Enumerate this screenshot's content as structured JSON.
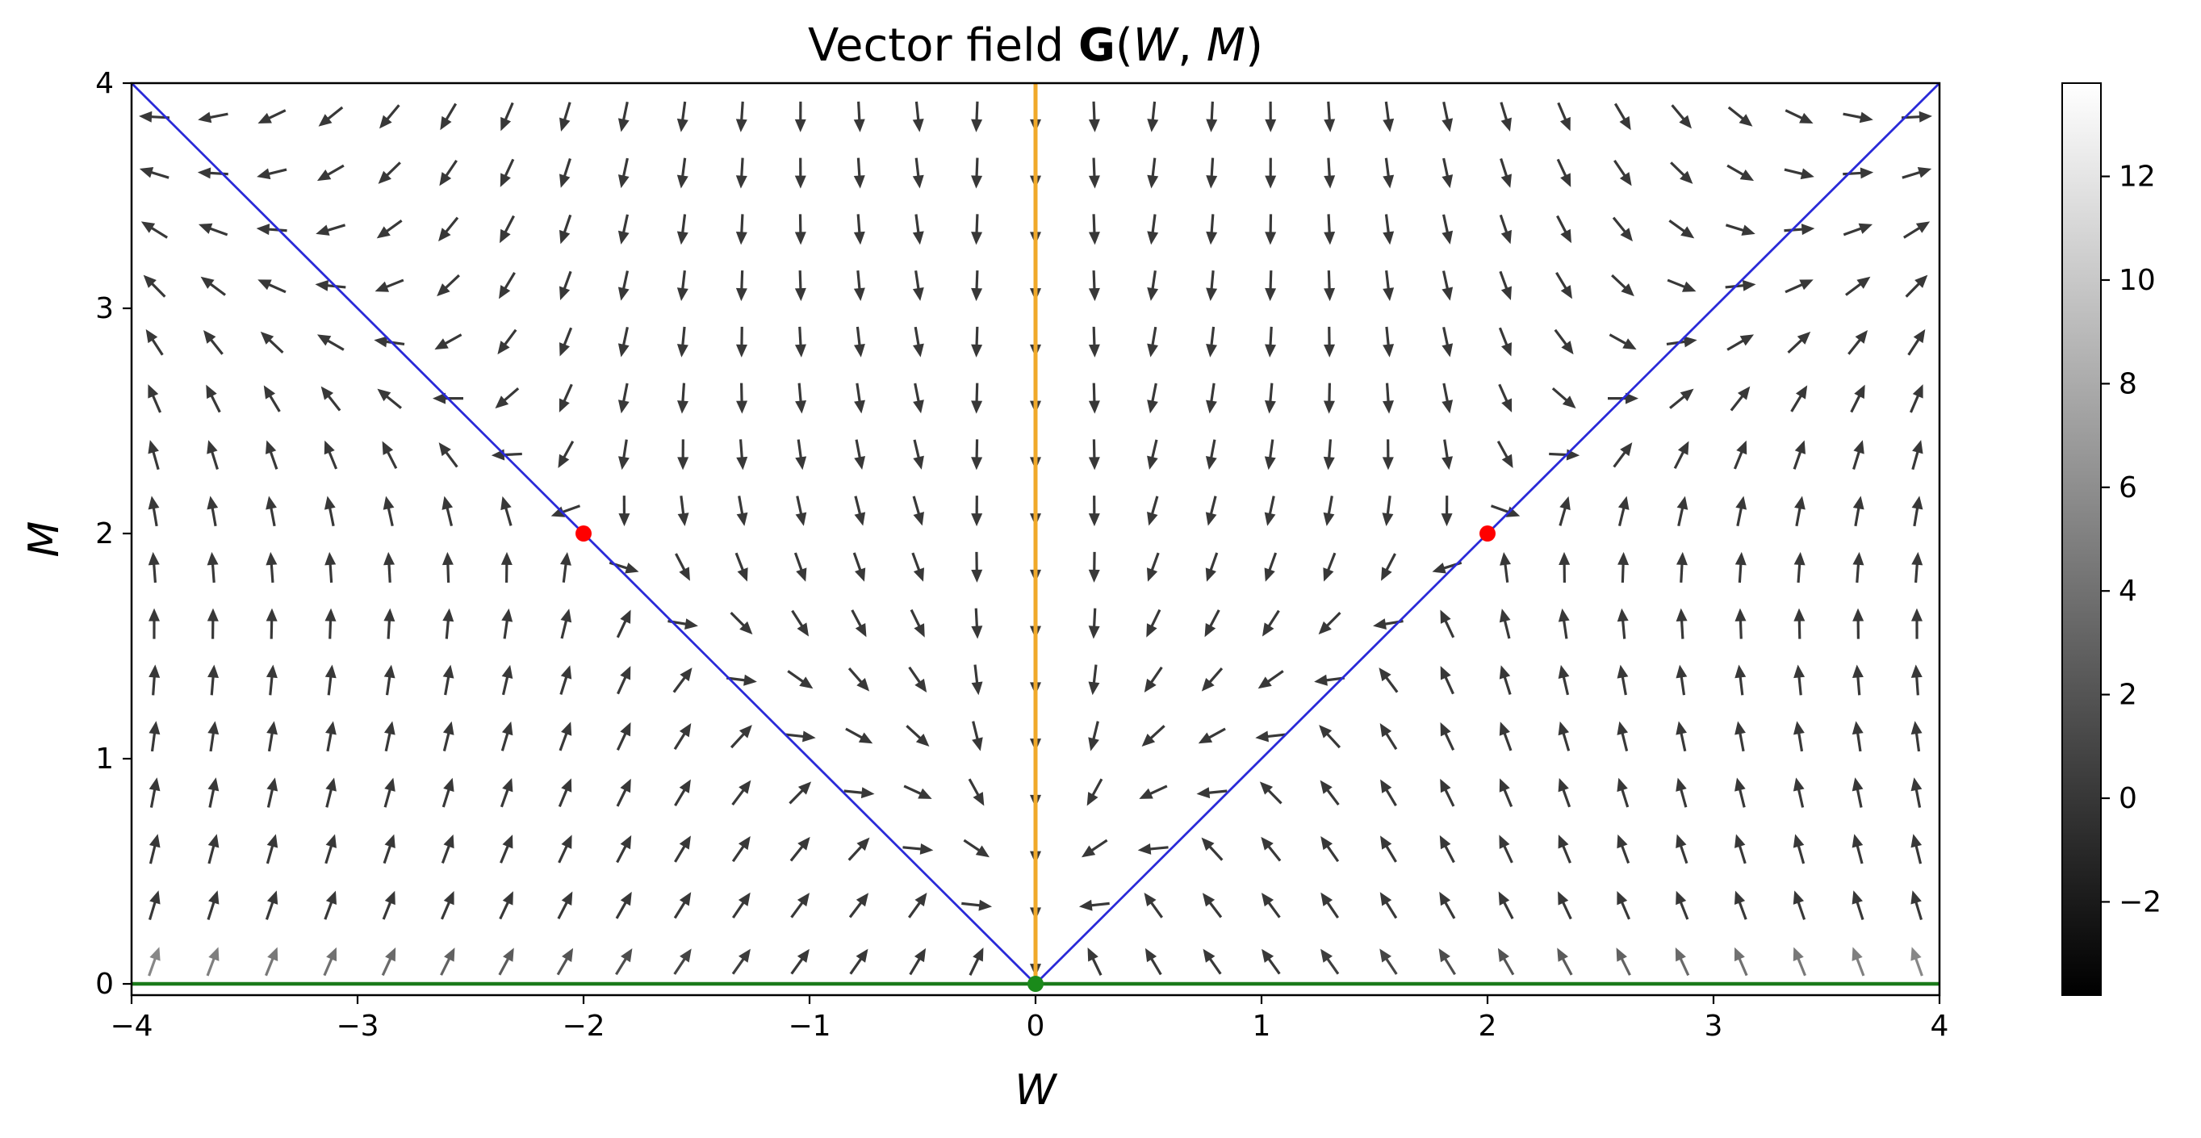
{
  "chart_data": {
    "type": "quiver",
    "title": {
      "prefix": "Vector field ",
      "bold": "G",
      "args_open": "(",
      "arg1": "W",
      "sep": ", ",
      "arg2": "M",
      "args_close": ")"
    },
    "xlabel": "W",
    "ylabel": "M",
    "xlim": [
      -4,
      4
    ],
    "ylim": [
      -0.05,
      4
    ],
    "xticks": [
      -4,
      -3,
      -2,
      -1,
      0,
      1,
      2,
      3,
      4
    ],
    "xtick_labels": [
      "−4",
      "−3",
      "−2",
      "−1",
      "0",
      "1",
      "2",
      "3",
      "4"
    ],
    "yticks": [
      0,
      1,
      2,
      3,
      4
    ],
    "ytick_labels": [
      "0",
      "1",
      "2",
      "3",
      "4"
    ],
    "grid": false,
    "quiver_grid": {
      "x_count": 31,
      "y_count": 16,
      "x_range": [
        -3.9,
        3.9
      ],
      "y_range": [
        0.1,
        3.85
      ]
    },
    "lines": [
      {
        "name": "M = |W|, W < 0",
        "x": [
          -4,
          0
        ],
        "y": [
          4,
          0
        ],
        "color": "#2a2ad8"
      },
      {
        "name": "M = |W|, W > 0",
        "x": [
          0,
          4
        ],
        "y": [
          0,
          4
        ],
        "color": "#2a2ad8"
      },
      {
        "name": "W = 0",
        "x": [
          0,
          0
        ],
        "y": [
          0,
          4
        ],
        "color": "#f0a92a"
      },
      {
        "name": "M = 0",
        "x": [
          -4,
          4
        ],
        "y": [
          0,
          0
        ],
        "color": "#1a7a1a"
      }
    ],
    "points": [
      {
        "x": -2,
        "y": 2,
        "color": "#ff0000"
      },
      {
        "x": 2,
        "y": 2,
        "color": "#ff0000"
      },
      {
        "x": 0,
        "y": 0,
        "color": "#1a8a1a"
      }
    ],
    "colorbar": {
      "range": [
        -3.8,
        13.8
      ],
      "ticks": [
        -2,
        0,
        2,
        4,
        6,
        8,
        10,
        12
      ],
      "tick_labels": [
        "−2",
        "0",
        "2",
        "4",
        "6",
        "8",
        "10",
        "12"
      ],
      "colormap": "gray"
    }
  }
}
